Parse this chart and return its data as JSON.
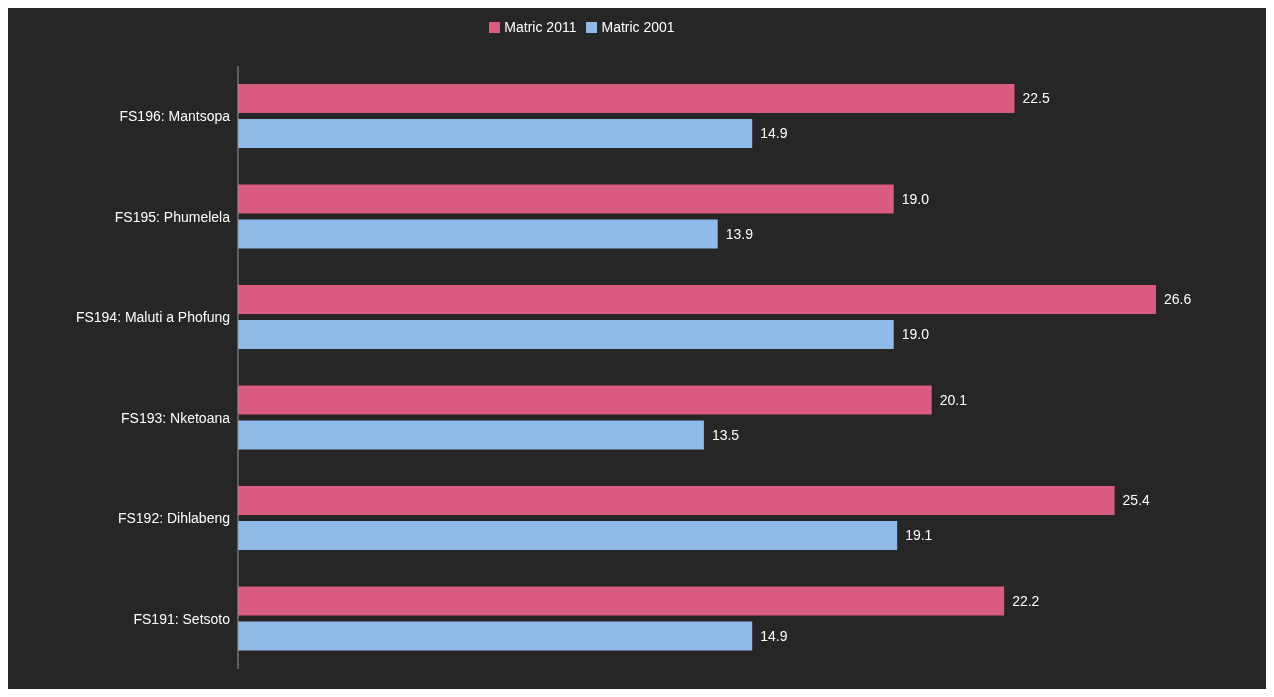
{
  "chart_data": {
    "type": "bar",
    "orientation": "horizontal",
    "categories": [
      "FS196: Mantsopa",
      "FS195: Phumelela",
      "FS194: Maluti a Phofung",
      "FS193: Nketoana",
      "FS192: Dihlabeng",
      "FS191: Setsoto"
    ],
    "series": [
      {
        "name": "Matric 2011",
        "color": "#d95b7f",
        "values": [
          22.5,
          19.0,
          26.6,
          20.1,
          25.4,
          22.2
        ],
        "value_labels": [
          "22.5",
          "19.0",
          "26.6",
          "20.1",
          "25.4",
          "22.2"
        ]
      },
      {
        "name": "Matric 2001",
        "color": "#8fb9e6",
        "values": [
          14.9,
          13.9,
          19.0,
          13.5,
          19.1,
          14.9
        ],
        "value_labels": [
          "14.9",
          "13.9",
          "19.0",
          "13.5",
          "19.1",
          "14.9"
        ]
      }
    ],
    "legend": "top",
    "grid": false
  }
}
